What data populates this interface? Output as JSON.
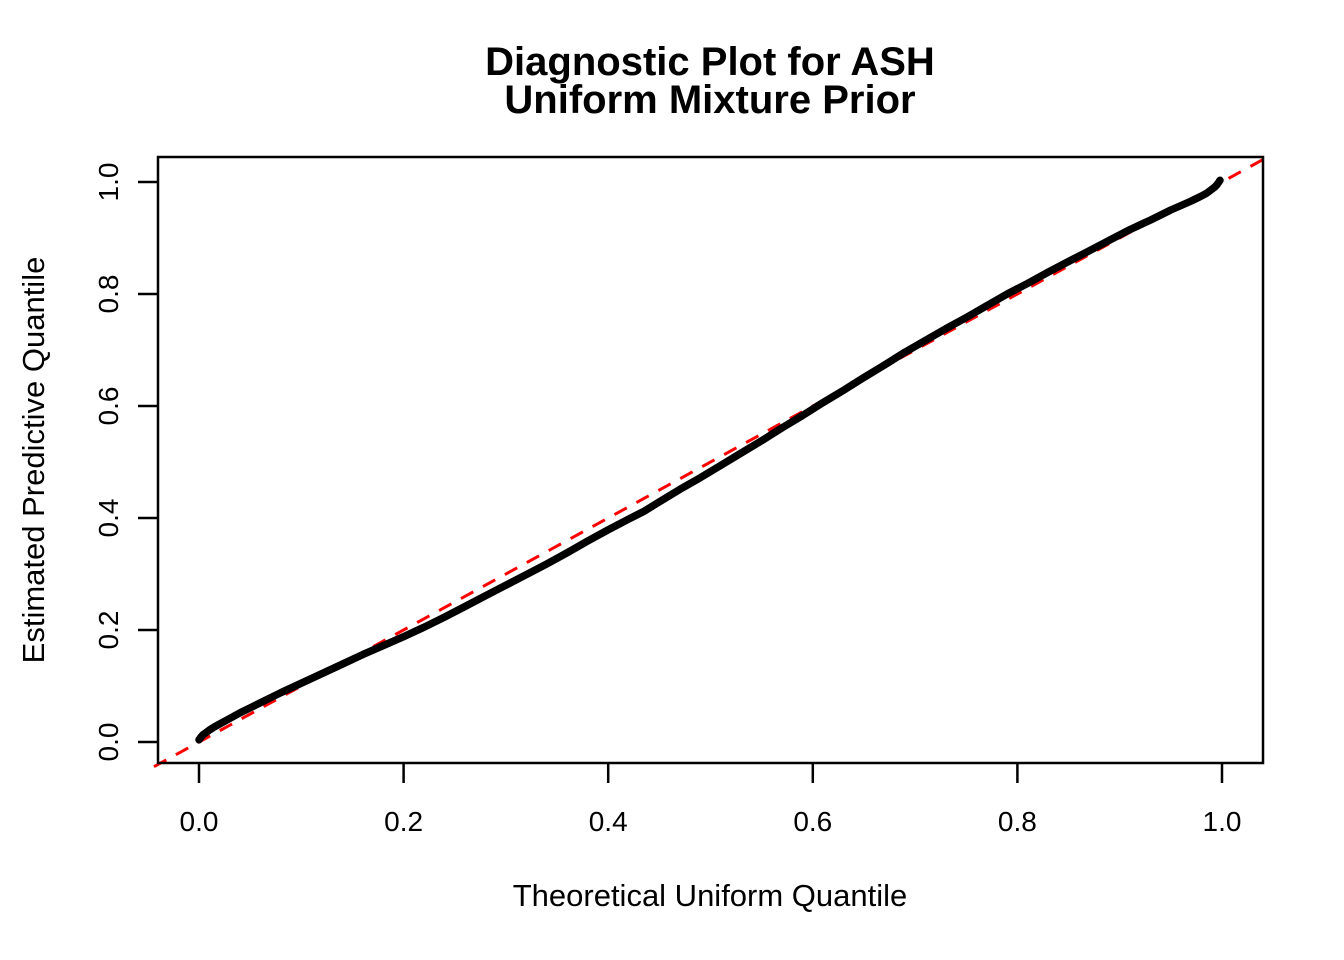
{
  "figure": {
    "title_line1": "Diagnostic Plot for ASH",
    "title_line2": "Uniform Mixture Prior",
    "xlabel": "Theoretical Uniform Quantile",
    "ylabel": "Estimated Predictive Quantile"
  },
  "colors": {
    "background": "#FFFFFF",
    "frame": "#000000",
    "text": "#000000",
    "curve": "#000000",
    "reference_line": "#FF0000"
  },
  "chart_data": {
    "type": "line",
    "title": "Diagnostic Plot for ASH\nUniform Mixture Prior",
    "xlabel": "Theoretical Uniform Quantile",
    "ylabel": "Estimated Predictive Quantile",
    "xlim": [
      -0.04,
      1.04
    ],
    "ylim": [
      -0.04,
      1.04
    ],
    "grid": false,
    "legend": "none",
    "x_ticks": [
      0.0,
      0.2,
      0.4,
      0.6,
      0.8,
      1.0
    ],
    "x_tick_labels": [
      "0.0",
      "0.2",
      "0.4",
      "0.6",
      "0.8",
      "1.0"
    ],
    "y_ticks": [
      0.0,
      0.2,
      0.4,
      0.6,
      0.8,
      1.0
    ],
    "y_tick_labels": [
      "0.0",
      "0.2",
      "0.4",
      "0.6",
      "0.8",
      "1.0"
    ],
    "series": [
      {
        "name": "estimated-predictive-quantiles",
        "style": "solid",
        "color": "#000000",
        "stroke_width": 7.5,
        "x": [
          0.0,
          0.002,
          0.004,
          0.007,
          0.01,
          0.015,
          0.02,
          0.03,
          0.04,
          0.05,
          0.06,
          0.08,
          0.1,
          0.12,
          0.14,
          0.16,
          0.18,
          0.2,
          0.22,
          0.24,
          0.26,
          0.28,
          0.3,
          0.32,
          0.34,
          0.36,
          0.38,
          0.4,
          0.42,
          0.435,
          0.45,
          0.47,
          0.49,
          0.51,
          0.53,
          0.55,
          0.57,
          0.59,
          0.61,
          0.63,
          0.65,
          0.67,
          0.69,
          0.71,
          0.73,
          0.75,
          0.77,
          0.79,
          0.81,
          0.83,
          0.85,
          0.87,
          0.89,
          0.91,
          0.93,
          0.95,
          0.96,
          0.97,
          0.98,
          0.985,
          0.99,
          0.993,
          0.995,
          0.997,
          0.998
        ],
        "y": [
          0.004,
          0.009,
          0.013,
          0.017,
          0.021,
          0.027,
          0.032,
          0.042,
          0.052,
          0.061,
          0.07,
          0.088,
          0.105,
          0.122,
          0.139,
          0.156,
          0.172,
          0.188,
          0.205,
          0.223,
          0.242,
          0.261,
          0.28,
          0.299,
          0.318,
          0.338,
          0.359,
          0.379,
          0.398,
          0.412,
          0.429,
          0.451,
          0.472,
          0.494,
          0.516,
          0.538,
          0.561,
          0.583,
          0.606,
          0.628,
          0.651,
          0.673,
          0.696,
          0.717,
          0.738,
          0.758,
          0.779,
          0.8,
          0.819,
          0.839,
          0.858,
          0.877,
          0.896,
          0.915,
          0.932,
          0.95,
          0.958,
          0.966,
          0.975,
          0.98,
          0.987,
          0.991,
          0.995,
          1.0,
          1.003
        ]
      },
      {
        "name": "reference-diagonal",
        "style": "dashed",
        "color": "#FF0000",
        "stroke_width": 3,
        "x": [
          -0.044,
          1.044
        ],
        "y": [
          -0.044,
          1.044
        ]
      }
    ]
  }
}
